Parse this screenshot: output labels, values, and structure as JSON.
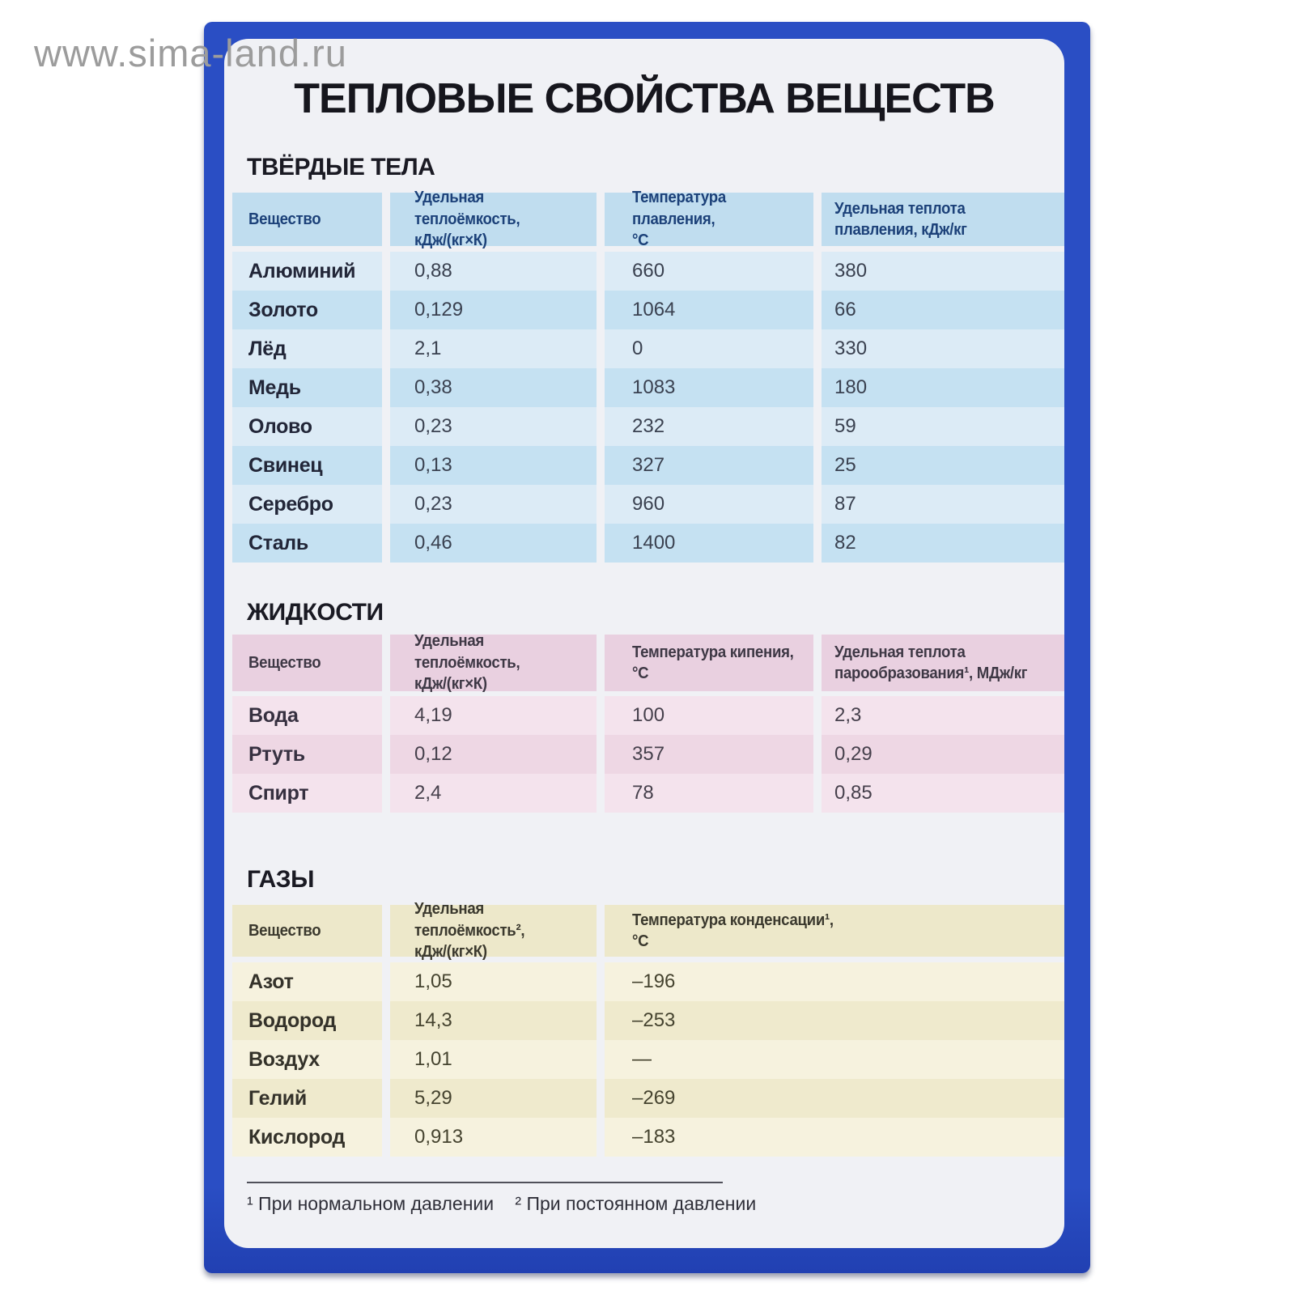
{
  "watermark": "www.sima-land.ru",
  "poster": {
    "title": "ТЕПЛОВЫЕ СВОЙСТВА ВЕЩЕСТВ"
  },
  "sections": {
    "solids": {
      "heading": "ТВЁРДЫЕ ТЕЛА",
      "columns": [
        "Вещество",
        "Удельная теплоёмкость,\nкДж/(кг×К)",
        "Температура плавления,\n°С",
        "Удельная теплота\nплавления, кДж/кг"
      ],
      "rows": [
        {
          "substance": "Алюминий",
          "heat_capacity": "0,88",
          "melting_point": "660",
          "heat_of_fusion": "380"
        },
        {
          "substance": "Золото",
          "heat_capacity": "0,129",
          "melting_point": "1064",
          "heat_of_fusion": "66"
        },
        {
          "substance": "Лёд",
          "heat_capacity": "2,1",
          "melting_point": "0",
          "heat_of_fusion": "330"
        },
        {
          "substance": "Медь",
          "heat_capacity": "0,38",
          "melting_point": "1083",
          "heat_of_fusion": "180"
        },
        {
          "substance": "Олово",
          "heat_capacity": "0,23",
          "melting_point": "232",
          "heat_of_fusion": "59"
        },
        {
          "substance": "Свинец",
          "heat_capacity": "0,13",
          "melting_point": "327",
          "heat_of_fusion": "25"
        },
        {
          "substance": "Серебро",
          "heat_capacity": "0,23",
          "melting_point": "960",
          "heat_of_fusion": "87"
        },
        {
          "substance": "Сталь",
          "heat_capacity": "0,46",
          "melting_point": "1400",
          "heat_of_fusion": "82"
        }
      ]
    },
    "liquids": {
      "heading": "ЖИДКОСТИ",
      "columns": [
        "Вещество",
        "Удельная теплоёмкость,\nкДж/(кг×К)",
        "Температура кипения, °С",
        "Удельная теплота\nпарообразования¹, МДж/кг"
      ],
      "rows": [
        {
          "substance": "Вода",
          "heat_capacity": "4,19",
          "boiling_point": "100",
          "heat_of_vaporization": "2,3"
        },
        {
          "substance": "Ртуть",
          "heat_capacity": "0,12",
          "boiling_point": "357",
          "heat_of_vaporization": "0,29"
        },
        {
          "substance": "Спирт",
          "heat_capacity": "2,4",
          "boiling_point": "78",
          "heat_of_vaporization": "0,85"
        }
      ]
    },
    "gases": {
      "heading": "ГАЗЫ",
      "columns": [
        "Вещество",
        "Удельная теплоёмкость²,\nкДж/(кг×К)",
        "Температура конденсации¹,\n°С"
      ],
      "rows": [
        {
          "substance": "Азот",
          "heat_capacity": "1,05",
          "condensation_point": "–196"
        },
        {
          "substance": "Водород",
          "heat_capacity": "14,3",
          "condensation_point": "–253"
        },
        {
          "substance": "Воздух",
          "heat_capacity": "1,01",
          "condensation_point": "—"
        },
        {
          "substance": "Гелий",
          "heat_capacity": "5,29",
          "condensation_point": "–269"
        },
        {
          "substance": "Кислород",
          "heat_capacity": "0,913",
          "condensation_point": "–183"
        }
      ]
    }
  },
  "footnotes": [
    "¹ При нормальном давлении",
    "² При постоянном давлении"
  ],
  "colors": {
    "frame-blue": "#2a4ec4",
    "card-bg": "#f0f1f5",
    "watermark-gray": "#9c9c9c",
    "solids-header": "#c0ddef",
    "solids-header-text": "#1c4179",
    "solids-row-light": "#dcebf6",
    "solids-row-dark": "#c5e1f2",
    "liquids-header": "#e9d0e0",
    "liquids-row-light": "#f4e3ed",
    "liquids-row-dark": "#eed7e4",
    "gases-header": "#ede8ca",
    "gases-row-light": "#f6f2de",
    "gases-row-dark": "#efeacd"
  }
}
